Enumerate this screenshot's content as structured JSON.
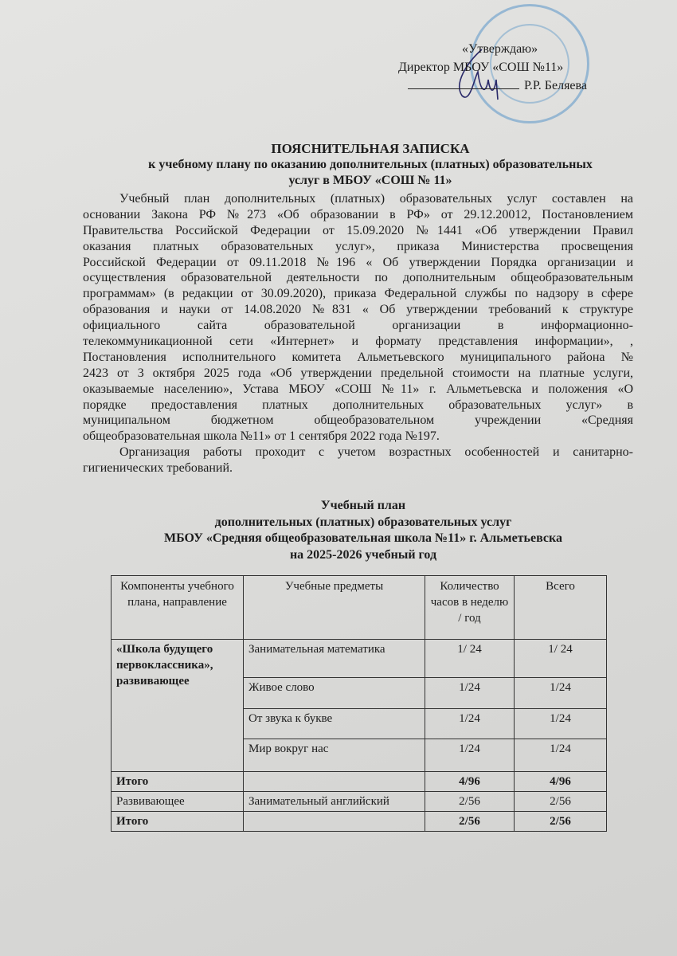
{
  "approval": {
    "line1": "«Утверждаю»",
    "line2": "Директор МБОУ «СОШ №11»",
    "line3": "Р.Р. Беляева",
    "stamp_color": "#5a96c8",
    "signature_color": "#2a2a6a"
  },
  "title": {
    "line1": "ПОЯСНИТЕЛЬНАЯ ЗАПИСКА",
    "line2": "к учебному плану по оказанию дополнительных (платных)  образовательных",
    "line3": "услуг в МБОУ «СОШ № 11»"
  },
  "paragraph1": [
    "Учебный план дополнительных (платных) образовательных услуг составлен на",
    "основании   Закона РФ №273  «Об образовании в РФ» от 29.12.20012, Постановлением",
    "Правительства Российской Федерации от 15.09.2020 №1441 «Об утверждении Правил",
    "оказания платных образовательных  услуг»,  приказа Министерства просвещения",
    "Российской Федерации от 09.11.2018 №196 « Об утверждении Порядка организации и",
    "осуществления образовательной деятельности по дополнительным общеобразовательным",
    "программам» (в редакции от 30.09.2020), приказа Федеральной службы по надзору в сфере",
    "образования и науки от 14.08.2020 №831 « Об утверждении требований к структуре",
    "официального сайта образовательной организации в информационно-",
    "телекоммуникационной сети «Интернет» и формату представления информации»,  ,",
    "Постановления исполнительного комитета Альметьевского муниципального района №",
    "2423 от 3 октября  2025 года «Об утверждении предельной стоимости на платные услуги,",
    "оказываемые населению», Устава МБОУ «СОШ №11» г. Альметьевска и положения «О",
    "порядке предоставления платных дополнительных образовательных услуг» в",
    "муниципальном бюджетном общеобразовательном учреждении «Средняя",
    "общеобразовательная школа №11» от 1 сентября 2022 года №197."
  ],
  "paragraph2": [
    "Организация работы проходит с учетом возрастных особенностей  и санитарно-",
    "гигиенических  требований."
  ],
  "plan_title": {
    "line1": "Учебный план",
    "line2": "дополнительных (платных)  образовательных услуг",
    "line3": "МБОУ «Средняя общеобразовательная школа  №11» г. Альметьевска",
    "line4": "на 2025-2026  учебный год"
  },
  "table": {
    "headers": [
      "Компоненты учебного плана, направление",
      "Учебные предметы",
      "Количество часов  в неделю / год",
      "Всего"
    ],
    "group1": "«Школа будущего первоклассника», развивающее",
    "rows": [
      {
        "subject": "Занимательная математика",
        "hours": "1/ 24",
        "total": "1/ 24"
      },
      {
        "subject": "Живое слово",
        "hours": "1/24",
        "total": "1/24"
      },
      {
        "subject": "От звука к букве",
        "hours": "1/24",
        "total": "1/24"
      },
      {
        "subject": "Мир вокруг нас",
        "hours": "1/24",
        "total": "1/24"
      }
    ],
    "total1": {
      "label": "Итого",
      "hours": "4/96",
      "total": "4/96"
    },
    "row_dev": {
      "component": "Развивающее",
      "subject": "Занимательный английский",
      "hours": "2/56",
      "total": "2/56"
    },
    "total2": {
      "label": "Итого",
      "hours": "2/56",
      "total": "2/56"
    }
  }
}
